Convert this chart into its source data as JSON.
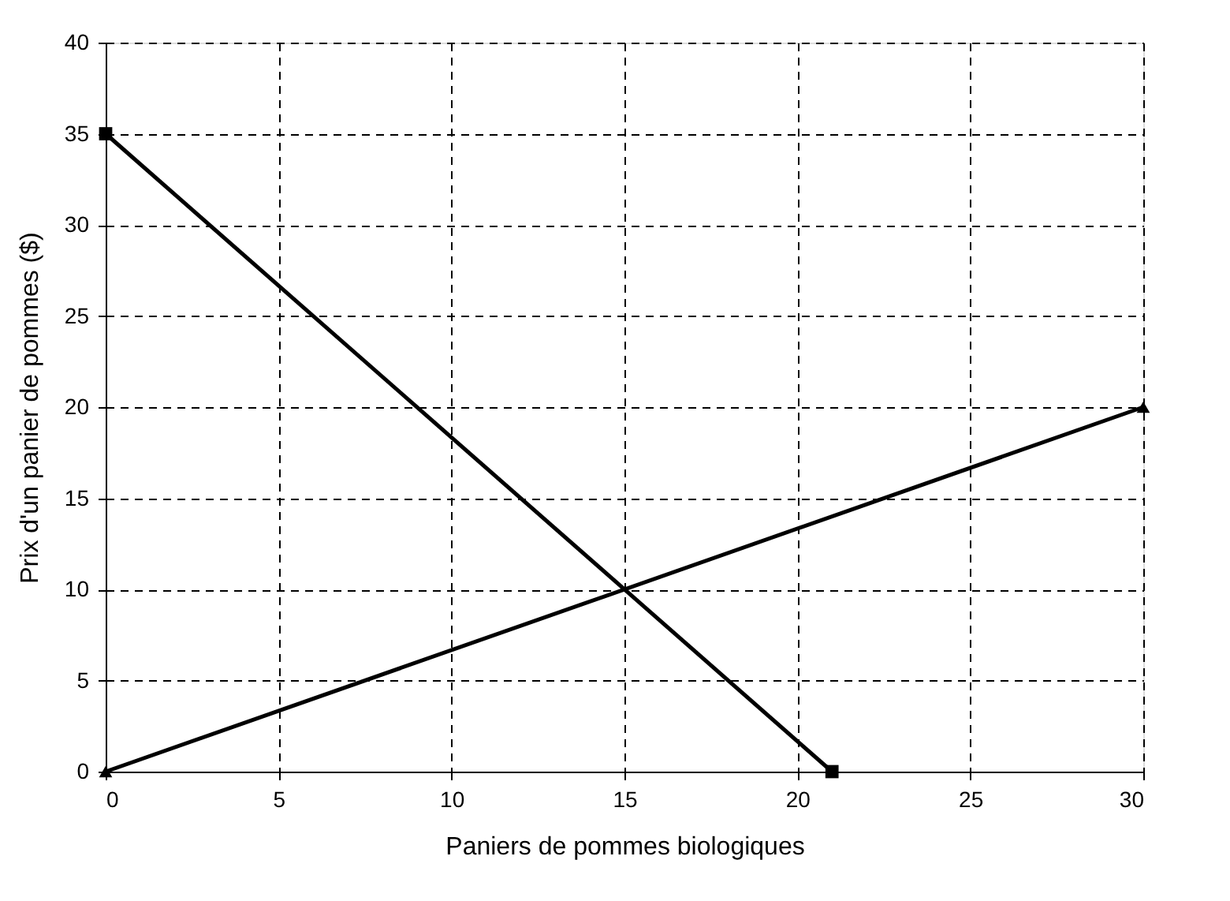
{
  "chart_data": {
    "type": "line",
    "xlabel": "Paniers de pommes biologiques",
    "ylabel": "Prix d'un panier de pommes ($)",
    "series": [
      {
        "x": [
          0,
          21
        ],
        "values": [
          35,
          0
        ],
        "color": "#000000",
        "marker": "square"
      },
      {
        "x": [
          0,
          30
        ],
        "values": [
          0,
          20
        ],
        "color": "#000000",
        "marker": "triangle"
      }
    ],
    "xlim": [
      0,
      30
    ],
    "xticks": [
      0,
      5,
      10,
      15,
      20,
      25,
      30
    ],
    "ylim": [
      0,
      40
    ],
    "yticks": [
      0,
      5,
      10,
      15,
      20,
      25,
      30,
      35,
      40
    ],
    "grid": true,
    "line_style": "solid"
  }
}
